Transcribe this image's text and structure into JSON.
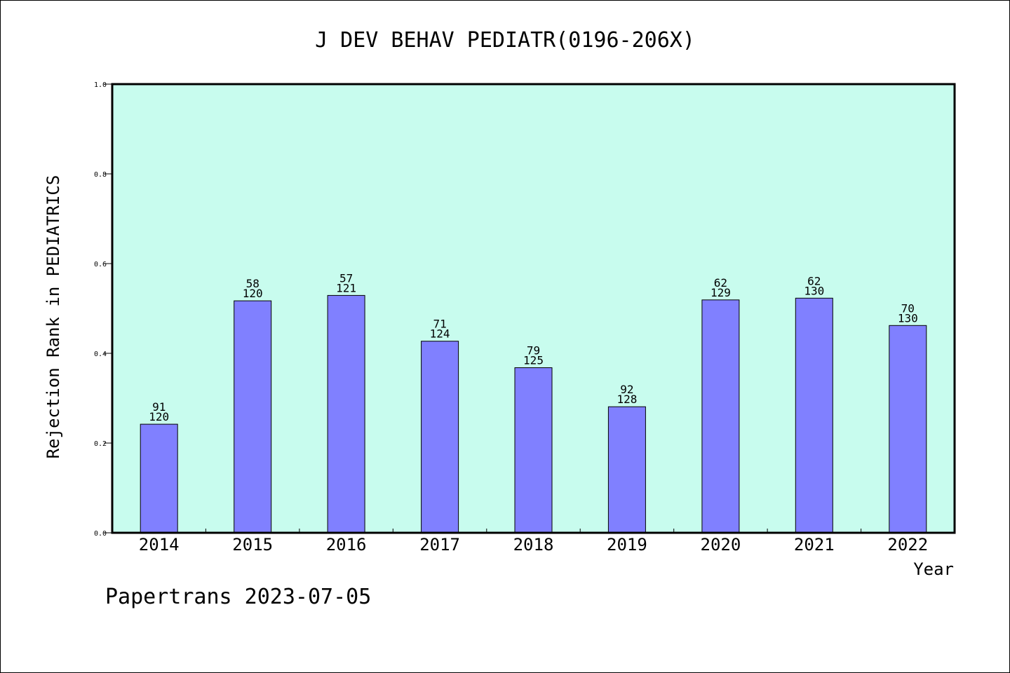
{
  "chart_data": {
    "type": "bar",
    "title": "J DEV BEHAV PEDIATR(0196-206X)",
    "xlabel": "Year",
    "ylabel": "Rejection Rank in PEDIATRICS",
    "ylim": [
      0,
      1.0
    ],
    "yticks": [
      "0.0",
      "0.2",
      "0.4",
      "0.6",
      "0.8",
      "1.0"
    ],
    "grid": false,
    "categories": [
      "2014",
      "2015",
      "2016",
      "2017",
      "2018",
      "2019",
      "2020",
      "2021",
      "2022"
    ],
    "values": [
      0.242,
      0.517,
      0.529,
      0.427,
      0.368,
      0.281,
      0.519,
      0.523,
      0.462
    ],
    "labels_top": [
      "91",
      "58",
      "57",
      "71",
      "79",
      "92",
      "62",
      "62",
      "70"
    ],
    "labels_bottom": [
      "120",
      "120",
      "121",
      "124",
      "125",
      "128",
      "129",
      "130",
      "130"
    ],
    "colors": {
      "plot_background": "#c8fcee",
      "bar": "#8080ff",
      "bar_edge": "#000000"
    }
  },
  "footer": {
    "credit": "Papertrans 2023-07-05"
  }
}
